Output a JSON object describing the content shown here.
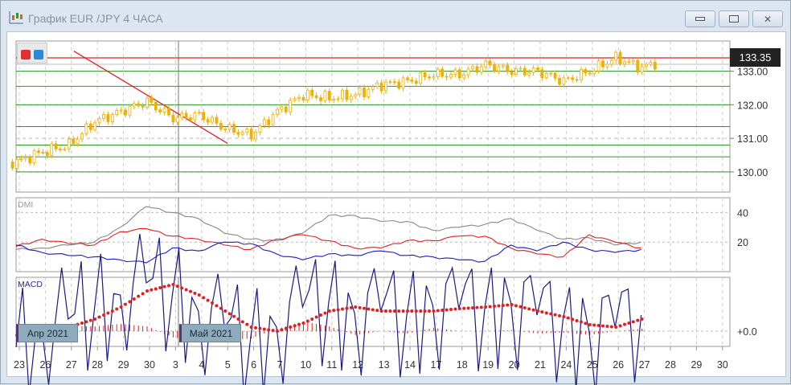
{
  "window": {
    "title": "График EUR /JPY  4 ЧАСА",
    "buttons": [
      "minimize",
      "maximize",
      "close"
    ]
  },
  "price_panel": {
    "current_price": "133.35",
    "y_ticks": [
      "133.00",
      "132.00",
      "131.00",
      "130.00"
    ],
    "colors": {
      "candle": "#f0b000",
      "trendline": "#e02020",
      "levels": "#2a9a2a",
      "current_line": "#e02020"
    }
  },
  "dmi_panel": {
    "label": "DMI",
    "y_ticks": [
      "40",
      "20"
    ]
  },
  "macd_panel": {
    "label": "MACD",
    "zero_label": "+0.0"
  },
  "month_labels": [
    "Апр 2021",
    "Май 2021"
  ],
  "x_ticks": [
    "23",
    "26",
    "27",
    "28",
    "29",
    "30",
    "3",
    "4",
    "5",
    "6",
    "7",
    "10",
    "11",
    "12",
    "13",
    "14",
    "17",
    "18",
    "19",
    "20",
    "21",
    "24",
    "25",
    "26",
    "27",
    "28",
    "29",
    "30"
  ],
  "chart_data": [
    {
      "type": "candlestick",
      "title": "График EUR /JPY  4 ЧАСА",
      "x": [
        "23",
        "26",
        "27",
        "28",
        "29",
        "30",
        "3",
        "4",
        "5",
        "6",
        "7",
        "10",
        "11",
        "12",
        "13",
        "14",
        "17",
        "18",
        "19",
        "20",
        "21",
        "24",
        "25",
        "26",
        "27"
      ],
      "close_approx": [
        130.3,
        130.6,
        130.8,
        131.5,
        131.8,
        132.1,
        131.6,
        131.7,
        131.3,
        131.1,
        131.8,
        132.3,
        132.2,
        132.3,
        132.6,
        132.7,
        132.9,
        132.9,
        133.2,
        133.0,
        133.0,
        132.7,
        133.0,
        133.4,
        133.1
      ],
      "last": 133.35,
      "ylim": [
        129.4,
        133.9
      ],
      "horizontal_levels": [
        133.0,
        132.55,
        132.0,
        131.35,
        130.8,
        130.45,
        130.0
      ],
      "trendline": [
        {
          "x": "5",
          "y": 130.85
        },
        {
          "x": "27",
          "y": 133.6
        }
      ]
    },
    {
      "type": "line",
      "label": "DMI",
      "ylim": [
        0,
        50
      ],
      "series": [
        {
          "color": "#888888",
          "values": [
            15,
            16,
            18,
            20,
            30,
            44,
            40,
            36,
            26,
            22,
            21,
            26,
            38,
            38,
            34,
            34,
            28,
            30,
            32,
            36,
            28,
            22,
            23,
            18,
            20
          ]
        },
        {
          "color": "#e02020",
          "values": [
            17,
            22,
            19,
            18,
            27,
            29,
            24,
            22,
            18,
            15,
            22,
            25,
            21,
            16,
            16,
            21,
            21,
            24,
            24,
            16,
            12,
            10,
            25,
            20,
            16
          ]
        },
        {
          "color": "#1a1acc",
          "values": [
            18,
            13,
            11,
            10,
            8,
            6,
            16,
            14,
            20,
            19,
            12,
            8,
            12,
            11,
            14,
            11,
            10,
            8,
            7,
            18,
            14,
            20,
            15,
            13,
            15
          ]
        }
      ]
    },
    {
      "type": "line",
      "label": "MACD",
      "zero": 0,
      "series": [
        {
          "color": "#1a1a80",
          "values": [
            -0.2,
            0,
            0.15,
            0.25,
            0.45,
            0.6,
            0.45,
            0.25,
            0.05,
            -0.1,
            0.05,
            0.3,
            0.35,
            0.22,
            0.25,
            0.2,
            0.32,
            0.28,
            0.3,
            0.35,
            0.2,
            0.15,
            0,
            0.05,
            0.2
          ]
        },
        {
          "color": "#e02020",
          "values": [
            -0.05,
            0,
            0.05,
            0.15,
            0.3,
            0.5,
            0.58,
            0.45,
            0.25,
            0.05,
            0,
            0.1,
            0.25,
            0.3,
            0.25,
            0.25,
            0.25,
            0.28,
            0.3,
            0.33,
            0.25,
            0.18,
            0.08,
            0.05,
            0.15
          ]
        }
      ]
    }
  ]
}
